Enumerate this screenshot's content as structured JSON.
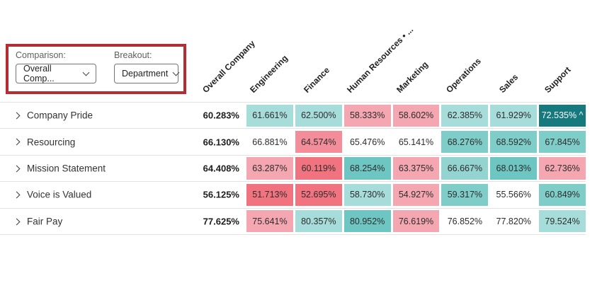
{
  "controls": {
    "comparison_label": "Comparison:",
    "comparison_value": "Overall Comp...",
    "breakout_label": "Breakout:",
    "breakout_value": "Department",
    "highlight_color": "#b32d32"
  },
  "chart_data": {
    "type": "heatmap",
    "title": "Survey category scores by department vs overall company",
    "columns": [
      "Overall Company",
      "Engineering",
      "Finance",
      "Human Resources • ...",
      "Marketing",
      "Operations",
      "Sales",
      "Support"
    ],
    "colors": {
      "teal_light": "#a6dcd9",
      "teal_mid": "#7fcdc9",
      "teal_med": "#6ec6c2",
      "teal_dark": "#15797e",
      "pink": "#f4a6b1",
      "pink_deep": "#f28d99",
      "red": "#f1737f",
      "white": "#ffffff"
    },
    "rows": [
      {
        "label": "Company Pride",
        "overall": "60.283%",
        "cells": [
          {
            "value": "61.661%",
            "bg": "#a6dcd9"
          },
          {
            "value": "62.500%",
            "bg": "#a6dcd9"
          },
          {
            "value": "58.333%",
            "bg": "#f4a6b1"
          },
          {
            "value": "58.602%",
            "bg": "#f4a6b1"
          },
          {
            "value": "62.385%",
            "bg": "#a6dcd9"
          },
          {
            "value": "61.929%",
            "bg": "#a6dcd9"
          },
          {
            "value": "72.535% ^",
            "bg": "#15797e",
            "fg": "#ffffff"
          }
        ]
      },
      {
        "label": "Resourcing",
        "overall": "66.130%",
        "cells": [
          {
            "value": "66.881%",
            "bg": "#ffffff"
          },
          {
            "value": "64.574%",
            "bg": "#f28d99"
          },
          {
            "value": "65.476%",
            "bg": "#ffffff"
          },
          {
            "value": "65.141%",
            "bg": "#ffffff"
          },
          {
            "value": "68.276%",
            "bg": "#7fcdc9"
          },
          {
            "value": "68.592%",
            "bg": "#7fcdc9"
          },
          {
            "value": "67.845%",
            "bg": "#7fcdc9"
          }
        ]
      },
      {
        "label": "Mission Statement",
        "overall": "64.408%",
        "cells": [
          {
            "value": "63.287%",
            "bg": "#f4a6b1"
          },
          {
            "value": "60.119%",
            "bg": "#f1737f"
          },
          {
            "value": "68.254%",
            "bg": "#6ec6c2"
          },
          {
            "value": "63.375%",
            "bg": "#f4a6b1"
          },
          {
            "value": "66.667%",
            "bg": "#93d4d1"
          },
          {
            "value": "68.013%",
            "bg": "#6ec6c2"
          },
          {
            "value": "62.736%",
            "bg": "#f4a6b1"
          }
        ]
      },
      {
        "label": "Voice is Valued",
        "overall": "56.125%",
        "cells": [
          {
            "value": "51.713%",
            "bg": "#f1737f"
          },
          {
            "value": "52.695%",
            "bg": "#f1737f"
          },
          {
            "value": "58.730%",
            "bg": "#a6dcd9"
          },
          {
            "value": "54.927%",
            "bg": "#f4a6b1"
          },
          {
            "value": "59.317%",
            "bg": "#7fcdc9"
          },
          {
            "value": "55.566%",
            "bg": "#ffffff"
          },
          {
            "value": "60.849%",
            "bg": "#7fcdc9"
          }
        ]
      },
      {
        "label": "Fair Pay",
        "overall": "77.625%",
        "cells": [
          {
            "value": "75.641%",
            "bg": "#f4a6b1"
          },
          {
            "value": "80.357%",
            "bg": "#a6dcd9"
          },
          {
            "value": "80.952%",
            "bg": "#6ec6c2"
          },
          {
            "value": "76.619%",
            "bg": "#f4a6b1"
          },
          {
            "value": "76.852%",
            "bg": "#ffffff"
          },
          {
            "value": "77.820%",
            "bg": "#ffffff"
          },
          {
            "value": "79.524%",
            "bg": "#a6dcd9"
          }
        ]
      }
    ]
  }
}
